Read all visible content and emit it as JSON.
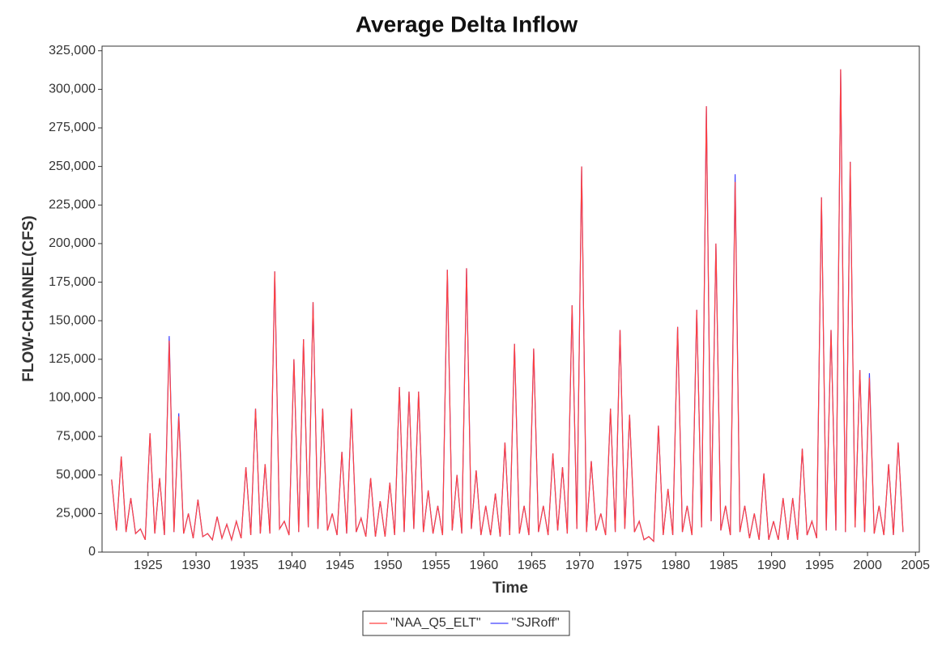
{
  "chart_data": {
    "type": "line",
    "title": "Average Delta Inflow",
    "xlabel": "Time",
    "ylabel": "FLOW-CHANNEL(CFS)",
    "x": [
      1921.2,
      1921.7,
      1922.2,
      1922.7,
      1923.2,
      1923.7,
      1924.2,
      1924.7,
      1925.2,
      1925.7,
      1926.2,
      1926.7,
      1927.2,
      1927.7,
      1928.2,
      1928.7,
      1929.2,
      1929.7,
      1930.2,
      1930.7,
      1931.2,
      1931.7,
      1932.2,
      1932.7,
      1933.2,
      1933.7,
      1934.2,
      1934.7,
      1935.2,
      1935.7,
      1936.2,
      1936.7,
      1937.2,
      1937.7,
      1938.2,
      1938.7,
      1939.2,
      1939.7,
      1940.2,
      1940.7,
      1941.2,
      1941.7,
      1942.2,
      1942.7,
      1943.2,
      1943.7,
      1944.2,
      1944.7,
      1945.2,
      1945.7,
      1946.2,
      1946.7,
      1947.2,
      1947.7,
      1948.2,
      1948.7,
      1949.2,
      1949.7,
      1950.2,
      1950.7,
      1951.2,
      1951.7,
      1952.2,
      1952.7,
      1953.2,
      1953.7,
      1954.2,
      1954.7,
      1955.2,
      1955.7,
      1956.2,
      1956.7,
      1957.2,
      1957.7,
      1958.2,
      1958.7,
      1959.2,
      1959.7,
      1960.2,
      1960.7,
      1961.2,
      1961.7,
      1962.2,
      1962.7,
      1963.2,
      1963.7,
      1964.2,
      1964.7,
      1965.2,
      1965.7,
      1966.2,
      1966.7,
      1967.2,
      1967.7,
      1968.2,
      1968.7,
      1969.2,
      1969.7,
      1970.2,
      1970.7,
      1971.2,
      1971.7,
      1972.2,
      1972.7,
      1973.2,
      1973.7,
      1974.2,
      1974.7,
      1975.2,
      1975.7,
      1976.2,
      1976.7,
      1977.2,
      1977.7,
      1978.2,
      1978.7,
      1979.2,
      1979.7,
      1980.2,
      1980.7,
      1981.2,
      1981.7,
      1982.2,
      1982.7,
      1983.2,
      1983.7,
      1984.2,
      1984.7,
      1985.2,
      1985.7,
      1986.2,
      1986.7,
      1987.2,
      1987.7,
      1988.2,
      1988.7,
      1989.2,
      1989.7,
      1990.2,
      1990.7,
      1991.2,
      1991.7,
      1992.2,
      1992.7,
      1993.2,
      1993.7,
      1994.2,
      1994.7,
      1995.2,
      1995.7,
      1996.2,
      1996.7,
      1997.2,
      1997.7,
      1998.2,
      1998.7,
      1999.2,
      1999.7,
      2000.2,
      2000.7,
      2001.2,
      2001.7,
      2002.2,
      2002.7,
      2003.2,
      2003.7
    ],
    "series": [
      {
        "name": "\"NAA_Q5_ELT\"",
        "color": "#ff4040",
        "values": [
          47000,
          14000,
          62000,
          13000,
          35000,
          12000,
          15000,
          8000,
          77000,
          12000,
          48000,
          11000,
          137000,
          13000,
          88000,
          12000,
          25000,
          9000,
          34000,
          10000,
          12000,
          8000,
          23000,
          9000,
          18000,
          8000,
          20000,
          9000,
          55000,
          11000,
          93000,
          12000,
          57000,
          12000,
          182000,
          15000,
          20000,
          11000,
          125000,
          13000,
          138000,
          16000,
          162000,
          15000,
          93000,
          14000,
          25000,
          11000,
          65000,
          12000,
          93000,
          13000,
          22000,
          10000,
          48000,
          10000,
          33000,
          10000,
          45000,
          11000,
          107000,
          13000,
          104000,
          15000,
          104000,
          13000,
          40000,
          12000,
          30000,
          11000,
          183000,
          14000,
          50000,
          12000,
          184000,
          15000,
          53000,
          11000,
          30000,
          11000,
          38000,
          10000,
          71000,
          11000,
          135000,
          12000,
          30000,
          11000,
          132000,
          13000,
          30000,
          11000,
          64000,
          14000,
          55000,
          12000,
          160000,
          15000,
          250000,
          13000,
          59000,
          14000,
          25000,
          11000,
          93000,
          13000,
          144000,
          15000,
          89000,
          13000,
          20000,
          8000,
          10000,
          7000,
          82000,
          11000,
          41000,
          11000,
          146000,
          13000,
          30000,
          11000,
          157000,
          16000,
          289000,
          20000,
          200000,
          14000,
          30000,
          11000,
          240000,
          13000,
          30000,
          9000,
          25000,
          8000,
          51000,
          8000,
          20000,
          8000,
          35000,
          8000,
          35000,
          8000,
          67000,
          11000,
          20000,
          9000,
          230000,
          14000,
          144000,
          14000,
          313000,
          13000,
          253000,
          16000,
          118000,
          13000,
          113000,
          12000,
          30000,
          11000,
          57000,
          11000,
          71000,
          13000
        ]
      },
      {
        "name": "\"SJRoff\"",
        "color": "#4040ff",
        "values": [
          47000,
          14000,
          62000,
          13000,
          35000,
          12000,
          15000,
          8000,
          77000,
          12000,
          48000,
          11000,
          140000,
          13000,
          90000,
          12000,
          25000,
          9000,
          34000,
          10000,
          12000,
          8000,
          23000,
          9000,
          18000,
          8000,
          20000,
          9000,
          55000,
          11000,
          93000,
          12000,
          57000,
          12000,
          182000,
          15000,
          20000,
          11000,
          125000,
          13000,
          138000,
          16000,
          162000,
          15000,
          93000,
          14000,
          25000,
          11000,
          65000,
          12000,
          93000,
          13000,
          22000,
          10000,
          48000,
          10000,
          33000,
          10000,
          45000,
          11000,
          107000,
          13000,
          104000,
          15000,
          104000,
          13000,
          40000,
          12000,
          30000,
          11000,
          183000,
          14000,
          50000,
          12000,
          184000,
          15000,
          53000,
          11000,
          30000,
          11000,
          38000,
          10000,
          71000,
          11000,
          135000,
          12000,
          30000,
          11000,
          132000,
          13000,
          30000,
          11000,
          64000,
          14000,
          55000,
          12000,
          160000,
          15000,
          250000,
          13000,
          59000,
          14000,
          25000,
          11000,
          93000,
          13000,
          144000,
          15000,
          89000,
          13000,
          20000,
          8000,
          10000,
          7000,
          82000,
          11000,
          41000,
          11000,
          146000,
          13000,
          30000,
          11000,
          157000,
          16000,
          289000,
          20000,
          200000,
          14000,
          30000,
          11000,
          245000,
          13000,
          30000,
          9000,
          25000,
          8000,
          51000,
          8000,
          20000,
          8000,
          35000,
          8000,
          35000,
          8000,
          67000,
          11000,
          20000,
          9000,
          230000,
          14000,
          144000,
          14000,
          313000,
          13000,
          253000,
          16000,
          118000,
          13000,
          116000,
          12000,
          30000,
          11000,
          57000,
          11000,
          71000,
          13000
        ]
      }
    ],
    "xlim": [
      1920.2,
      2005.4
    ],
    "xticks": [
      1925,
      1930,
      1935,
      1940,
      1945,
      1950,
      1955,
      1960,
      1965,
      1970,
      1975,
      1980,
      1985,
      1990,
      1995,
      2000,
      2005
    ],
    "ylim": [
      0,
      328000
    ],
    "yticks": [
      0,
      {
        "value": 25000,
        "label": "25,000"
      },
      {
        "value": 50000,
        "label": "50,000"
      },
      {
        "value": 75000,
        "label": "75,000"
      },
      {
        "value": 100000,
        "label": "100,000"
      },
      {
        "value": 125000,
        "label": "125,000"
      },
      {
        "value": 150000,
        "label": "150,000"
      },
      {
        "value": 175000,
        "label": "175,000"
      },
      {
        "value": 200000,
        "label": "200,000"
      },
      {
        "value": 225000,
        "label": "225,000"
      },
      {
        "value": 250000,
        "label": "250,000"
      },
      {
        "value": 275000,
        "label": "275,000"
      },
      {
        "value": 300000,
        "label": "300,000"
      },
      {
        "value": 325000,
        "label": "325,000"
      }
    ],
    "legend": "bottom"
  }
}
